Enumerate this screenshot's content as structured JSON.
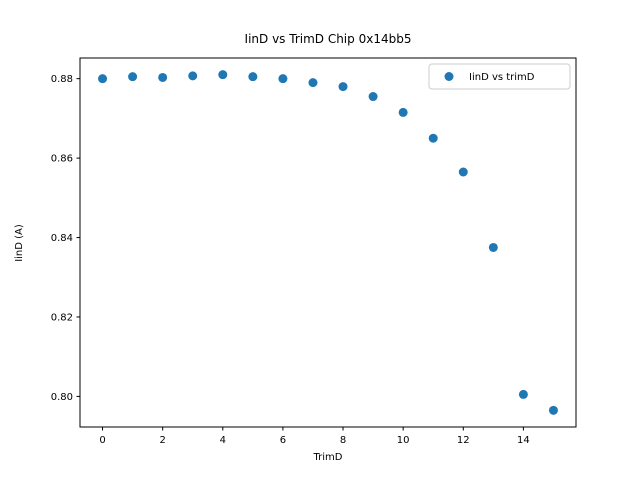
{
  "chart_data": {
    "type": "scatter",
    "title": "IinD vs TrimD Chip 0x14bb5",
    "xlabel": "TrimD",
    "ylabel": "IinD (A)",
    "legend": {
      "label": "IinD vs trimD",
      "position": "upper right"
    },
    "marker_color": "#1f77b4",
    "grid": false,
    "x": [
      0,
      1,
      2,
      3,
      4,
      5,
      6,
      7,
      8,
      9,
      10,
      11,
      12,
      13,
      14,
      15
    ],
    "y": [
      0.88,
      0.8805,
      0.8803,
      0.8807,
      0.881,
      0.8805,
      0.88,
      0.879,
      0.878,
      0.8755,
      0.8715,
      0.865,
      0.8565,
      0.8375,
      0.8005,
      0.7965
    ],
    "xlim": [
      -0.75,
      15.75
    ],
    "ylim": [
      0.7923,
      0.8852
    ],
    "xticks": [
      0,
      2,
      4,
      6,
      8,
      10,
      12,
      14
    ],
    "xtick_labels": [
      "0",
      "2",
      "4",
      "6",
      "8",
      "10",
      "12",
      "14"
    ],
    "yticks": [
      0.8,
      0.82,
      0.84,
      0.86,
      0.88
    ],
    "ytick_labels": [
      "0.80",
      "0.82",
      "0.84",
      "0.86",
      "0.88"
    ]
  }
}
